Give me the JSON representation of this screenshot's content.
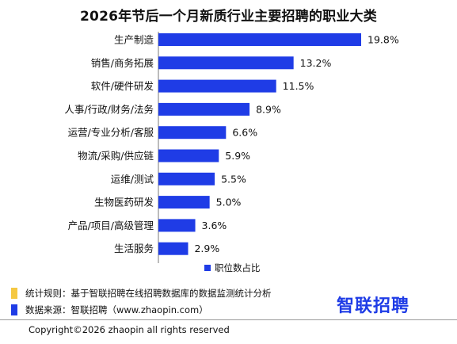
{
  "title": "2026年节后一个月新质行业主要招聘的职业大类",
  "chart_data": {
    "type": "bar",
    "orientation": "horizontal",
    "categories": [
      "生产制造",
      "销售/商务拓展",
      "软件/硬件研发",
      "人事/行政/财务/法务",
      "运营/专业分析/客服",
      "物流/采购/供应链",
      "运维/测试",
      "生物医药研发",
      "产品/项目/高级管理",
      "生活服务"
    ],
    "series": [
      {
        "name": "职位数占比",
        "values": [
          19.8,
          13.2,
          11.5,
          8.9,
          6.6,
          5.9,
          5.5,
          5.0,
          3.6,
          2.9
        ]
      }
    ],
    "value_labels": [
      "19.8%",
      "13.2%",
      "11.5%",
      "8.9%",
      "6.6%",
      "5.9%",
      "5.5%",
      "5.0%",
      "3.6%",
      "2.9%"
    ],
    "unit": "%",
    "xlim": [
      0,
      19.8
    ],
    "grid": false,
    "legend_position": "bottom-center",
    "bar_color": "#1f3ce6"
  },
  "legend": {
    "label": "职位数占比"
  },
  "footnotes": [
    {
      "text": "统计规则：基于智联招聘在线招聘数据库的数据监测统计分析",
      "color": "#f5c842"
    },
    {
      "text": "数据来源：智联招聘（www.zhaopin.com）",
      "color": "#1f3ce6"
    }
  ],
  "brand": {
    "name": "智联招聘",
    "color": "#1f3ce6"
  },
  "copyright": "Copyright©2026 zhaopin all rights reserved"
}
